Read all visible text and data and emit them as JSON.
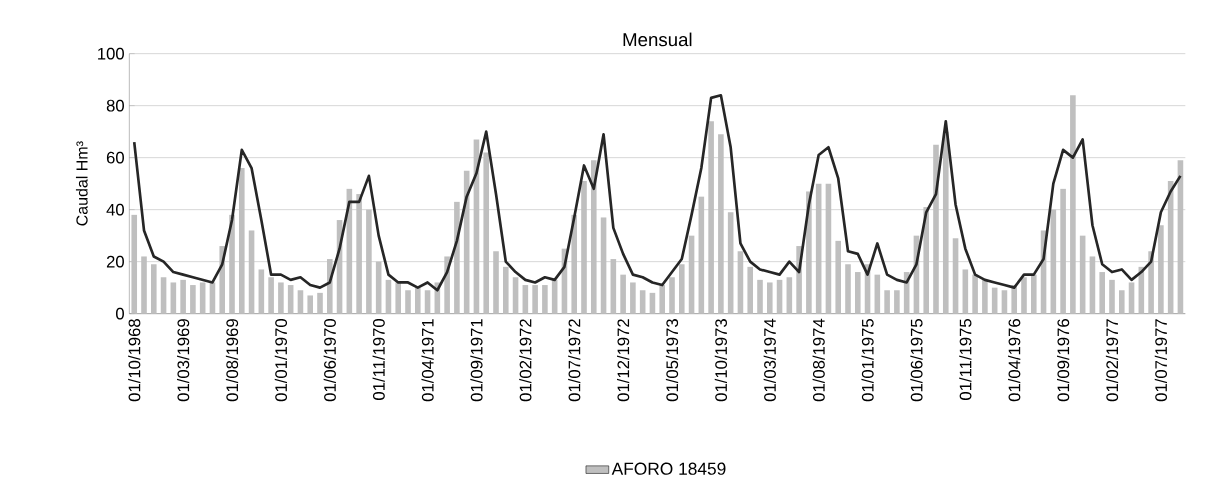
{
  "chart_data": {
    "type": "bar",
    "title": "Mensual",
    "ylabel": "Caudal Hm³",
    "categories": [
      "01/10/1968",
      null,
      null,
      null,
      null,
      "01/03/1969",
      null,
      null,
      null,
      null,
      "01/08/1969",
      null,
      null,
      null,
      null,
      "01/01/1970",
      null,
      null,
      null,
      null,
      "01/06/1970",
      null,
      null,
      null,
      null,
      "01/11/1970",
      null,
      null,
      null,
      null,
      "01/04/1971",
      null,
      null,
      null,
      null,
      "01/09/1971",
      null,
      null,
      null,
      null,
      "01/02/1972",
      null,
      null,
      null,
      null,
      "01/07/1972",
      null,
      null,
      null,
      null,
      "01/12/1972",
      null,
      null,
      null,
      null,
      "01/05/1973",
      null,
      null,
      null,
      null,
      "01/10/1973",
      null,
      null,
      null,
      null,
      "01/03/1974",
      null,
      null,
      null,
      null,
      "01/08/1974",
      null,
      null,
      null,
      null,
      "01/01/1975",
      null,
      null,
      null,
      null,
      "01/06/1975",
      null,
      null,
      null,
      null,
      "01/11/1975",
      null,
      null,
      null,
      null,
      "01/04/1976",
      null,
      null,
      null,
      null,
      "01/09/1976",
      null,
      null,
      null,
      null,
      "01/02/1977",
      null,
      null,
      null,
      null,
      "01/07/1977",
      null,
      null
    ],
    "series": [
      {
        "name": "AFORO 18459",
        "color": "#bfbfbf",
        "values": [
          38,
          22,
          19,
          14,
          12,
          13,
          11,
          12,
          12,
          26,
          38,
          56,
          32,
          17,
          14,
          12,
          11,
          9,
          7,
          8,
          21,
          36,
          48,
          46,
          40,
          20,
          13,
          12,
          9,
          10,
          9,
          12,
          22,
          43,
          55,
          67,
          62,
          24,
          18,
          14,
          11,
          11,
          11,
          13,
          25,
          38,
          51,
          59,
          37,
          21,
          15,
          12,
          9,
          8,
          11,
          14,
          19,
          30,
          45,
          74,
          69,
          39,
          24,
          18,
          13,
          12,
          13,
          14,
          26,
          47,
          50,
          50,
          28,
          19,
          16,
          19,
          15,
          9,
          9,
          16,
          30,
          41,
          65,
          70,
          29,
          17,
          15,
          13,
          10,
          9,
          11,
          14,
          15,
          32,
          40,
          48,
          84,
          30,
          22,
          16,
          13,
          9,
          12,
          18,
          24,
          34,
          51,
          59
        ]
      },
      {
        "type": "line",
        "color": "#262626",
        "values": [
          66,
          32,
          22,
          20,
          16,
          15,
          14,
          13,
          12,
          19,
          36,
          63,
          56,
          36,
          15,
          15,
          13,
          14,
          11,
          10,
          12,
          25,
          43,
          43,
          53,
          30,
          15,
          12,
          12,
          10,
          12,
          9,
          16,
          28,
          45,
          54,
          70,
          46,
          20,
          16,
          13,
          12,
          14,
          13,
          18,
          37,
          57,
          48,
          69,
          33,
          23,
          15,
          14,
          12,
          11,
          16,
          21,
          38,
          56,
          83,
          84,
          64,
          27,
          20,
          17,
          16,
          15,
          20,
          16,
          42,
          61,
          64,
          52,
          24,
          23,
          15,
          27,
          15,
          13,
          12,
          19,
          39,
          46,
          74,
          42,
          25,
          15,
          13,
          12,
          11,
          10,
          15,
          15,
          21,
          50,
          63,
          60,
          67,
          34,
          19,
          16,
          17,
          13,
          16,
          20,
          39,
          47,
          53
        ]
      }
    ],
    "ylim": [
      0,
      100
    ],
    "yticks": [
      0,
      20,
      40,
      60,
      80,
      100
    ],
    "grid": "y",
    "legend": "bottom"
  }
}
